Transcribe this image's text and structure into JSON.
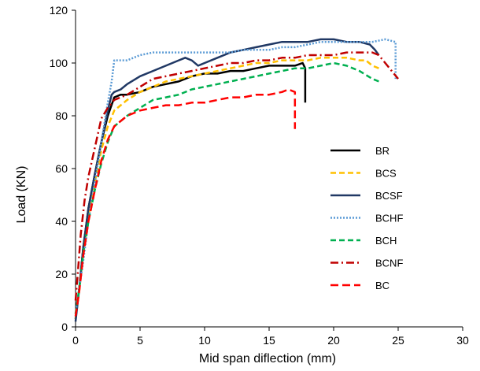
{
  "chart_data": {
    "type": "line",
    "title": "",
    "xlabel": "Mid span diflection (mm)",
    "ylabel": "Load (KN)",
    "xlim": [
      0,
      30
    ],
    "ylim": [
      0,
      120
    ],
    "x_ticks": [
      "0",
      "5",
      "10",
      "15",
      "20",
      "25",
      "30"
    ],
    "y_ticks": [
      "0",
      "20",
      "40",
      "60",
      "80",
      "100",
      "120"
    ],
    "grid": false,
    "legend_position": "right",
    "series": [
      {
        "name": "BR",
        "color": "#000000",
        "dash": "solid",
        "points": [
          [
            0,
            3
          ],
          [
            0.3,
            15
          ],
          [
            0.6,
            30
          ],
          [
            1,
            45
          ],
          [
            1.5,
            58
          ],
          [
            2,
            70
          ],
          [
            2.5,
            80
          ],
          [
            3,
            87
          ],
          [
            3.5,
            88
          ],
          [
            4,
            88
          ],
          [
            5,
            89
          ],
          [
            6,
            91
          ],
          [
            7,
            92
          ],
          [
            8,
            93
          ],
          [
            9,
            95
          ],
          [
            10,
            96
          ],
          [
            11,
            96
          ],
          [
            12,
            97
          ],
          [
            13,
            97
          ],
          [
            14,
            98
          ],
          [
            15,
            99
          ],
          [
            16,
            99
          ],
          [
            17,
            99
          ],
          [
            17.6,
            100
          ],
          [
            17.8,
            98
          ],
          [
            17.8,
            85
          ]
        ]
      },
      {
        "name": "BCS",
        "color": "#FFC000",
        "dash": "dashed",
        "points": [
          [
            0,
            3
          ],
          [
            0.3,
            14
          ],
          [
            0.6,
            28
          ],
          [
            1,
            42
          ],
          [
            1.5,
            55
          ],
          [
            2,
            67
          ],
          [
            2.5,
            76
          ],
          [
            3,
            82
          ],
          [
            3.5,
            84
          ],
          [
            4,
            86
          ],
          [
            5,
            89
          ],
          [
            6,
            91
          ],
          [
            7,
            93
          ],
          [
            8,
            94
          ],
          [
            9,
            95
          ],
          [
            10,
            96
          ],
          [
            11,
            97
          ],
          [
            12,
            98
          ],
          [
            13,
            99
          ],
          [
            14,
            100
          ],
          [
            15,
            100
          ],
          [
            16,
            101
          ],
          [
            17,
            101
          ],
          [
            18,
            101
          ],
          [
            19,
            102
          ],
          [
            20,
            102
          ],
          [
            21,
            102
          ],
          [
            22,
            101
          ],
          [
            22.5,
            101
          ],
          [
            23,
            99
          ],
          [
            23.5,
            98
          ]
        ]
      },
      {
        "name": "BCSF",
        "color": "#203864",
        "dash": "solid",
        "points": [
          [
            0,
            2
          ],
          [
            0.3,
            15
          ],
          [
            0.6,
            30
          ],
          [
            1,
            45
          ],
          [
            1.5,
            58
          ],
          [
            2,
            70
          ],
          [
            2.5,
            82
          ],
          [
            2.8,
            88
          ],
          [
            3,
            89
          ],
          [
            3.5,
            90
          ],
          [
            4,
            92
          ],
          [
            5,
            95
          ],
          [
            6,
            97
          ],
          [
            7,
            99
          ],
          [
            8,
            101
          ],
          [
            8.5,
            102
          ],
          [
            9,
            101
          ],
          [
            9.5,
            99
          ],
          [
            10,
            100
          ],
          [
            11,
            102
          ],
          [
            12,
            104
          ],
          [
            13,
            105
          ],
          [
            14,
            106
          ],
          [
            15,
            107
          ],
          [
            16,
            108
          ],
          [
            17,
            108
          ],
          [
            18,
            108
          ],
          [
            19,
            109
          ],
          [
            20,
            109
          ],
          [
            21,
            108
          ],
          [
            22,
            108
          ],
          [
            22.8,
            107
          ],
          [
            23.2,
            105
          ],
          [
            23.5,
            103
          ]
        ]
      },
      {
        "name": "BCHF",
        "color": "#5B9BD5",
        "dash": "dotted",
        "points": [
          [
            0,
            5
          ],
          [
            0.3,
            15
          ],
          [
            0.6,
            25
          ],
          [
            1,
            40
          ],
          [
            1.5,
            55
          ],
          [
            2,
            70
          ],
          [
            2.5,
            85
          ],
          [
            2.8,
            93
          ],
          [
            3,
            101
          ],
          [
            3.5,
            101
          ],
          [
            4,
            101
          ],
          [
            4.5,
            102
          ],
          [
            5,
            103
          ],
          [
            6,
            104
          ],
          [
            7,
            104
          ],
          [
            8,
            104
          ],
          [
            9,
            104
          ],
          [
            10,
            104
          ],
          [
            11,
            104
          ],
          [
            12,
            104
          ],
          [
            13,
            105
          ],
          [
            14,
            105
          ],
          [
            15,
            105
          ],
          [
            16,
            106
          ],
          [
            17,
            106
          ],
          [
            18,
            107
          ],
          [
            19,
            108
          ],
          [
            20,
            108
          ],
          [
            21,
            108
          ],
          [
            22,
            108
          ],
          [
            23,
            108
          ],
          [
            24,
            109
          ],
          [
            24.8,
            108
          ],
          [
            24.8,
            94
          ]
        ]
      },
      {
        "name": "BCH",
        "color": "#00B050",
        "dash": "dashed",
        "points": [
          [
            0,
            5
          ],
          [
            0.3,
            15
          ],
          [
            0.6,
            28
          ],
          [
            1,
            40
          ],
          [
            1.5,
            52
          ],
          [
            2,
            62
          ],
          [
            2.5,
            70
          ],
          [
            3,
            76
          ],
          [
            3.5,
            78
          ],
          [
            4,
            80
          ],
          [
            5,
            83
          ],
          [
            6,
            86
          ],
          [
            7,
            87
          ],
          [
            8,
            88
          ],
          [
            9,
            90
          ],
          [
            10,
            91
          ],
          [
            11,
            92
          ],
          [
            12,
            93
          ],
          [
            13,
            94
          ],
          [
            14,
            95
          ],
          [
            15,
            96
          ],
          [
            16,
            97
          ],
          [
            17,
            98
          ],
          [
            18,
            98
          ],
          [
            19,
            99
          ],
          [
            20,
            100
          ],
          [
            21,
            99
          ],
          [
            22,
            97
          ],
          [
            23,
            94
          ],
          [
            23.5,
            93
          ]
        ]
      },
      {
        "name": "BCNF",
        "color": "#C00000",
        "dash": "dashdot",
        "points": [
          [
            0,
            10
          ],
          [
            0.2,
            22
          ],
          [
            0.4,
            35
          ],
          [
            0.7,
            48
          ],
          [
            1,
            57
          ],
          [
            1.5,
            68
          ],
          [
            2,
            79
          ],
          [
            2.5,
            83
          ],
          [
            3,
            86
          ],
          [
            4,
            88
          ],
          [
            5,
            91
          ],
          [
            6,
            94
          ],
          [
            7,
            95
          ],
          [
            8,
            96
          ],
          [
            9,
            97
          ],
          [
            10,
            98
          ],
          [
            11,
            99
          ],
          [
            12,
            100
          ],
          [
            13,
            100
          ],
          [
            14,
            101
          ],
          [
            15,
            101
          ],
          [
            16,
            102
          ],
          [
            17,
            102
          ],
          [
            18,
            103
          ],
          [
            19,
            103
          ],
          [
            20,
            103
          ],
          [
            21,
            104
          ],
          [
            22,
            104
          ],
          [
            23,
            104
          ],
          [
            23.5,
            103
          ],
          [
            24.5,
            97
          ],
          [
            25,
            94
          ]
        ]
      },
      {
        "name": "BC",
        "color": "#FF0000",
        "dash": "longdash",
        "points": [
          [
            0,
            4
          ],
          [
            0.3,
            14
          ],
          [
            0.6,
            27
          ],
          [
            1,
            40
          ],
          [
            1.5,
            52
          ],
          [
            2,
            63
          ],
          [
            2.5,
            71
          ],
          [
            3,
            76
          ],
          [
            3.5,
            78
          ],
          [
            4,
            80
          ],
          [
            5,
            82
          ],
          [
            6,
            83
          ],
          [
            7,
            84
          ],
          [
            8,
            84
          ],
          [
            9,
            85
          ],
          [
            10,
            85
          ],
          [
            11,
            86
          ],
          [
            12,
            87
          ],
          [
            13,
            87
          ],
          [
            14,
            88
          ],
          [
            15,
            88
          ],
          [
            16,
            89
          ],
          [
            16.5,
            90
          ],
          [
            17,
            89
          ],
          [
            17,
            75
          ]
        ]
      }
    ]
  }
}
